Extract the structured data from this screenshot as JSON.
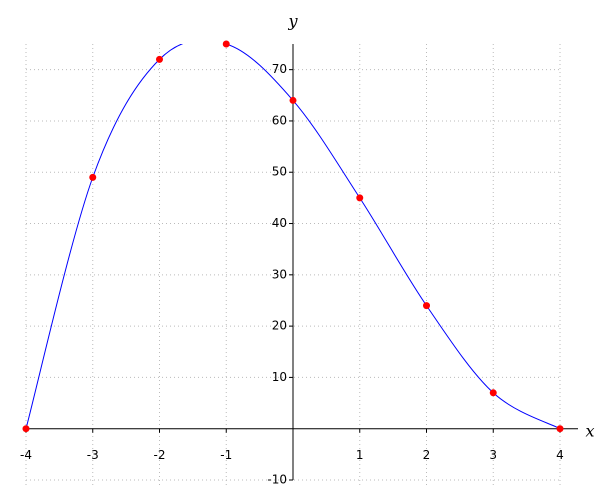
{
  "chart_data": {
    "type": "line",
    "xlabel": "x",
    "ylabel": "y",
    "x": [
      -4,
      -3,
      -2,
      -1,
      0,
      1,
      2,
      3,
      4
    ],
    "series": [
      {
        "color": "#0000ff",
        "marker_color": "#ff0000",
        "values": [
          0,
          49,
          72,
          75,
          64,
          45,
          24,
          7,
          0
        ]
      }
    ],
    "xlim": [
      -4,
      4
    ],
    "ylim": [
      -10,
      75
    ],
    "xticks": [
      -4,
      -3,
      -2,
      -1,
      1,
      2,
      3,
      4
    ],
    "yticks": [
      -10,
      10,
      20,
      30,
      40,
      50,
      60,
      70
    ],
    "grid": true
  }
}
